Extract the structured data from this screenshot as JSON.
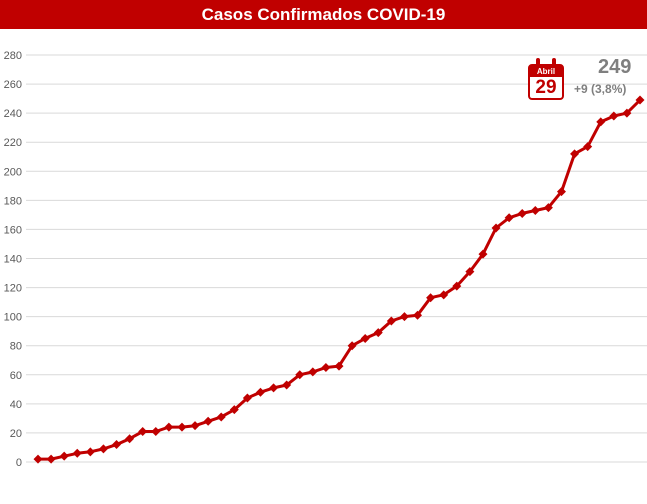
{
  "title": "Casos Confirmados COVID-19",
  "callout": {
    "month": "Abril",
    "day": "29",
    "total": "249",
    "delta": "+9 (3,8%)"
  },
  "colors": {
    "accent": "#c00000",
    "grid": "#d9d9d9",
    "text": "#595959",
    "callout_text": "#7f7f7f"
  },
  "chart_data": {
    "type": "line",
    "title": "Casos Confirmados COVID-19",
    "xlabel": "",
    "ylabel": "",
    "ylim": [
      0,
      280
    ],
    "yticks": [
      0,
      20,
      40,
      60,
      80,
      100,
      120,
      140,
      160,
      180,
      200,
      220,
      240,
      260,
      280
    ],
    "grid": true,
    "legend": "none",
    "marker": "diamond",
    "series": [
      {
        "values": [
          2,
          2,
          4,
          6,
          7,
          9,
          12,
          16,
          21,
          21,
          24,
          24,
          25,
          28,
          31,
          36,
          44,
          48,
          51,
          53,
          60,
          62,
          65,
          66,
          80,
          85,
          89,
          97,
          100,
          101,
          113,
          115,
          121,
          131,
          143,
          161,
          168,
          171,
          173,
          175,
          186,
          212,
          217,
          234,
          238,
          240,
          249
        ]
      }
    ]
  }
}
